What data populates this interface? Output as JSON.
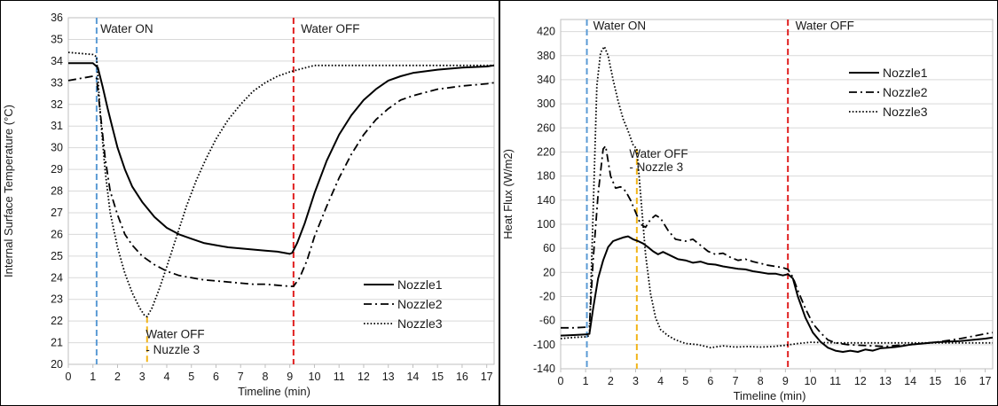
{
  "colors": {
    "water_on_line": "#5b9bd5",
    "water_off_line": "#e02020",
    "nozzle3_off_line": "#f2b51b",
    "series": "#000000",
    "gridline": "#d9d9d9"
  },
  "chart_data": [
    {
      "type": "line",
      "title": "",
      "xlabel": "Timeline (min)",
      "ylabel": "Internal Surface Temperature (°C)",
      "xlim": [
        0,
        17.3
      ],
      "ylim": [
        20,
        36
      ],
      "xticks": [
        0,
        1,
        2,
        3,
        4,
        5,
        6,
        7,
        8,
        9,
        10,
        11,
        12,
        13,
        14,
        15,
        16,
        17
      ],
      "yticks": [
        20,
        21,
        22,
        23,
        24,
        25,
        26,
        27,
        28,
        29,
        30,
        31,
        32,
        33,
        34,
        35,
        36
      ],
      "grid": "horizontal",
      "legend_position": "bottom-right",
      "annotations": [
        {
          "text": "Water ON",
          "x": 1.3,
          "y": 35.3
        },
        {
          "text": "Water OFF",
          "x": 9.45,
          "y": 35.3
        },
        {
          "text": "Water OFF",
          "x": 3.15,
          "y": 21.2
        },
        {
          "text": "- Nuzzle 3",
          "x": 3.15,
          "y": 20.5
        }
      ],
      "vlines": [
        {
          "x": 1.15,
          "color_key": "water_on_line",
          "y0": 20,
          "y1": 36
        },
        {
          "x": 9.15,
          "color_key": "water_off_line",
          "y0": 20,
          "y1": 36
        },
        {
          "x": 3.2,
          "color_key": "nozzle3_off_line",
          "y0": 20,
          "y1": 22.2
        }
      ],
      "series": [
        {
          "name": "Nozzle1",
          "dash": "solid",
          "x": [
            0,
            0.5,
            1.0,
            1.2,
            1.4,
            1.6,
            1.8,
            2.0,
            2.3,
            2.6,
            3.0,
            3.5,
            4.0,
            4.5,
            5.0,
            5.5,
            6.0,
            6.5,
            7.0,
            7.5,
            8.0,
            8.5,
            9.0,
            9.1,
            9.3,
            9.6,
            10.0,
            10.5,
            11.0,
            11.5,
            12.0,
            12.5,
            13.0,
            13.5,
            14.0,
            15.0,
            16.0,
            17.0,
            17.3
          ],
          "y": [
            33.9,
            33.9,
            33.9,
            33.7,
            32.8,
            31.8,
            30.9,
            30.0,
            29.0,
            28.2,
            27.5,
            26.8,
            26.3,
            26.0,
            25.8,
            25.6,
            25.5,
            25.4,
            25.35,
            25.3,
            25.25,
            25.2,
            25.1,
            25.15,
            25.6,
            26.5,
            27.9,
            29.4,
            30.6,
            31.5,
            32.2,
            32.7,
            33.1,
            33.3,
            33.45,
            33.6,
            33.7,
            33.75,
            33.8
          ]
        },
        {
          "name": "Nozzle2",
          "dash": "dashdot",
          "x": [
            0,
            0.5,
            1.0,
            1.15,
            1.3,
            1.5,
            1.7,
            2.0,
            2.3,
            2.6,
            3.0,
            3.5,
            4.0,
            4.5,
            5.0,
            5.5,
            6.0,
            6.5,
            7.0,
            7.5,
            8.0,
            8.5,
            9.0,
            9.15,
            9.4,
            9.7,
            10.0,
            10.5,
            11.0,
            11.5,
            12.0,
            12.5,
            13.0,
            13.5,
            14.0,
            15.0,
            16.0,
            17.0,
            17.3
          ],
          "y": [
            33.1,
            33.2,
            33.3,
            33.2,
            31.6,
            29.5,
            28.0,
            26.9,
            26.0,
            25.5,
            25.0,
            24.6,
            24.3,
            24.1,
            24.0,
            23.9,
            23.85,
            23.8,
            23.75,
            23.7,
            23.7,
            23.65,
            23.6,
            23.6,
            24.0,
            24.8,
            25.9,
            27.3,
            28.6,
            29.7,
            30.6,
            31.3,
            31.8,
            32.2,
            32.4,
            32.7,
            32.85,
            32.95,
            33.0
          ]
        },
        {
          "name": "Nozzle3",
          "dash": "dotted",
          "x": [
            0,
            0.5,
            1.0,
            1.15,
            1.3,
            1.5,
            1.7,
            2.0,
            2.3,
            2.6,
            2.9,
            3.1,
            3.2,
            3.4,
            3.7,
            4.0,
            4.4,
            4.8,
            5.2,
            5.6,
            6.0,
            6.5,
            7.0,
            7.5,
            8.0,
            8.5,
            9.0,
            9.5,
            10.0,
            10.5,
            11.0,
            12.0,
            13.0,
            14.0,
            15.0,
            16.0,
            17.0,
            17.3
          ],
          "y": [
            34.4,
            34.35,
            34.3,
            34.2,
            31.5,
            28.9,
            27.0,
            25.4,
            24.2,
            23.3,
            22.6,
            22.25,
            22.2,
            22.6,
            23.5,
            24.5,
            25.9,
            27.3,
            28.5,
            29.5,
            30.4,
            31.3,
            32.0,
            32.6,
            33.0,
            33.3,
            33.5,
            33.65,
            33.8,
            33.8,
            33.8,
            33.8,
            33.8,
            33.8,
            33.8,
            33.8,
            33.8,
            33.8
          ]
        }
      ]
    },
    {
      "type": "line",
      "title": "",
      "xlabel": "Timeline (min)",
      "ylabel": "Heat Flux (W/m2)",
      "xlim": [
        0,
        17.3
      ],
      "ylim": [
        -140,
        440
      ],
      "xticks": [
        0,
        1,
        2,
        3,
        4,
        5,
        6,
        7,
        8,
        9,
        10,
        11,
        12,
        13,
        14,
        15,
        16,
        17
      ],
      "yticks": [
        -140,
        -100,
        -60,
        -20,
        20,
        60,
        100,
        140,
        180,
        220,
        260,
        300,
        340,
        380,
        420
      ],
      "grid": "horizontal",
      "legend_position": "top-right",
      "annotations": [
        {
          "text": "Water ON",
          "x": 1.3,
          "y": 423
        },
        {
          "text": "Water OFF",
          "x": 9.4,
          "y": 423
        },
        {
          "text": "Water OFF",
          "x": 2.75,
          "y": 210
        },
        {
          "text": "- Nozzle 3",
          "x": 2.75,
          "y": 188
        }
      ],
      "vlines": [
        {
          "x": 1.05,
          "color_key": "water_on_line",
          "y0": -140,
          "y1": 440
        },
        {
          "x": 9.1,
          "color_key": "water_off_line",
          "y0": -140,
          "y1": 440
        },
        {
          "x": 3.05,
          "color_key": "nozzle3_off_line",
          "y0": -140,
          "y1": 225
        }
      ],
      "series": [
        {
          "name": "Nozzle1",
          "dash": "solid",
          "x": [
            0,
            0.5,
            1.0,
            1.15,
            1.3,
            1.5,
            1.7,
            1.9,
            2.1,
            2.3,
            2.5,
            2.7,
            2.9,
            3.1,
            3.3,
            3.5,
            3.7,
            3.9,
            4.1,
            4.4,
            4.7,
            5.0,
            5.3,
            5.6,
            5.9,
            6.2,
            6.5,
            6.8,
            7.1,
            7.4,
            7.7,
            8.0,
            8.3,
            8.6,
            8.9,
            9.1,
            9.3,
            9.5,
            9.8,
            10.1,
            10.4,
            10.7,
            11.0,
            11.3,
            11.6,
            11.9,
            12.2,
            12.5,
            12.8,
            13.1,
            13.4,
            13.7,
            14.0,
            14.5,
            15.0,
            15.5,
            16.0,
            16.5,
            17.0,
            17.3
          ],
          "y": [
            -85,
            -84,
            -83,
            -82,
            -40,
            10,
            40,
            62,
            72,
            75,
            78,
            80,
            75,
            72,
            68,
            62,
            55,
            50,
            54,
            48,
            42,
            40,
            36,
            38,
            34,
            33,
            30,
            28,
            26,
            25,
            22,
            20,
            18,
            18,
            15,
            17,
            10,
            -20,
            -55,
            -80,
            -95,
            -105,
            -110,
            -112,
            -110,
            -112,
            -108,
            -110,
            -106,
            -105,
            -104,
            -102,
            -100,
            -98,
            -96,
            -95,
            -94,
            -92,
            -90,
            -88
          ]
        },
        {
          "name": "Nozzle2",
          "dash": "dashdot",
          "x": [
            0,
            0.5,
            1.0,
            1.15,
            1.3,
            1.5,
            1.7,
            1.8,
            2.0,
            2.2,
            2.4,
            2.6,
            2.8,
            3.0,
            3.2,
            3.4,
            3.6,
            3.8,
            4.0,
            4.3,
            4.6,
            5.0,
            5.3,
            5.6,
            5.9,
            6.2,
            6.5,
            6.8,
            7.1,
            7.4,
            7.7,
            8.0,
            8.3,
            8.6,
            8.9,
            9.1,
            9.3,
            9.5,
            9.8,
            10.1,
            10.4,
            10.7,
            11.0,
            11.5,
            12.0,
            12.5,
            13.0,
            13.5,
            14.0,
            14.5,
            15.0,
            15.5,
            16.0,
            16.5,
            17.0,
            17.3
          ],
          "y": [
            -72,
            -72,
            -71,
            -70,
            40,
            150,
            225,
            230,
            180,
            160,
            162,
            155,
            140,
            120,
            100,
            95,
            108,
            115,
            110,
            90,
            75,
            72,
            75,
            65,
            55,
            50,
            52,
            45,
            40,
            42,
            38,
            35,
            32,
            30,
            28,
            25,
            12,
            -10,
            -40,
            -65,
            -80,
            -92,
            -97,
            -100,
            -101,
            -102,
            -103,
            -101,
            -100,
            -98,
            -96,
            -93,
            -90,
            -86,
            -82,
            -80
          ]
        },
        {
          "name": "Nozzle3",
          "dash": "dotted",
          "x": [
            0,
            0.5,
            1.0,
            1.15,
            1.3,
            1.45,
            1.6,
            1.75,
            1.9,
            2.1,
            2.3,
            2.5,
            2.7,
            2.9,
            3.05,
            3.2,
            3.4,
            3.6,
            3.8,
            4.0,
            4.3,
            4.6,
            5.0,
            5.5,
            6.0,
            6.5,
            7.0,
            7.5,
            8.0,
            8.5,
            9.0,
            9.5,
            10.0,
            11.0,
            12.0,
            13.0,
            14.0,
            15.0,
            16.0,
            17.0,
            17.3
          ],
          "y": [
            -90,
            -88,
            -87,
            -85,
            120,
            330,
            385,
            395,
            380,
            340,
            305,
            275,
            255,
            232,
            225,
            150,
            50,
            -15,
            -55,
            -75,
            -85,
            -92,
            -98,
            -100,
            -105,
            -102,
            -104,
            -103,
            -104,
            -103,
            -101,
            -98,
            -96,
            -97,
            -97,
            -97,
            -97,
            -97,
            -97,
            -97,
            -97
          ]
        }
      ]
    }
  ]
}
